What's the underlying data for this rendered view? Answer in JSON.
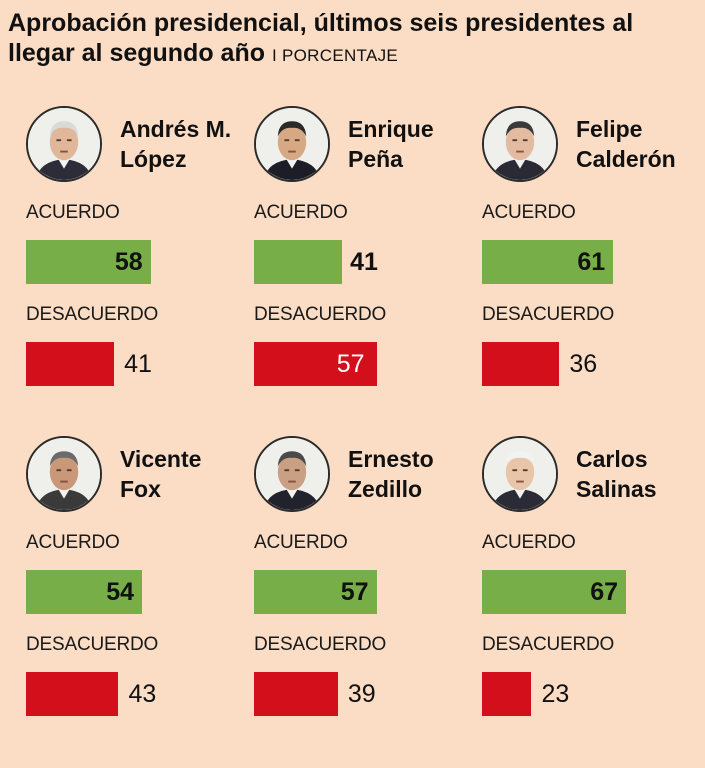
{
  "title_main": "Aprobación presidencial, últimos seis presidentes al llegar al segundo año",
  "title_unit": "I PORCENTAJE",
  "labels": {
    "agree": "ACUERDO",
    "disagree": "DESACUERDO"
  },
  "colors": {
    "background": "#fbdcc4",
    "agree": "#78ae47",
    "disagree": "#d30f1c"
  },
  "chart_data": {
    "type": "bar",
    "title": "Aprobación presidencial, últimos seis presidentes al llegar al segundo año",
    "unit": "PORCENTAJE",
    "categories": [
      "Andrés M. López",
      "Enrique Peña",
      "Felipe Calderón",
      "Vicente Fox",
      "Ernesto Zedillo",
      "Carlos Salinas"
    ],
    "series": [
      {
        "name": "ACUERDO",
        "values": [
          58,
          41,
          61,
          54,
          57,
          67
        ]
      },
      {
        "name": "DESACUERDO",
        "values": [
          41,
          57,
          36,
          43,
          39,
          23
        ]
      }
    ],
    "ylim": [
      0,
      100
    ]
  },
  "presidents": [
    {
      "name_line1": "Andrés M.",
      "name_line2": "López",
      "agree": "58",
      "disagree": "41",
      "photo": "portrait-amlo"
    },
    {
      "name_line1": "Enrique",
      "name_line2": "Peña",
      "agree": "41",
      "disagree": "57",
      "photo": "portrait-pena"
    },
    {
      "name_line1": "Felipe",
      "name_line2": "Calderón",
      "agree": "61",
      "disagree": "36",
      "photo": "portrait-calderon"
    },
    {
      "name_line1": "Vicente",
      "name_line2": "Fox",
      "agree": "54",
      "disagree": "43",
      "photo": "portrait-fox"
    },
    {
      "name_line1": "Ernesto",
      "name_line2": "Zedillo",
      "agree": "57",
      "disagree": "39",
      "photo": "portrait-zedillo"
    },
    {
      "name_line1": "Carlos",
      "name_line2": "Salinas",
      "agree": "67",
      "disagree": "23",
      "photo": "portrait-salinas"
    }
  ]
}
